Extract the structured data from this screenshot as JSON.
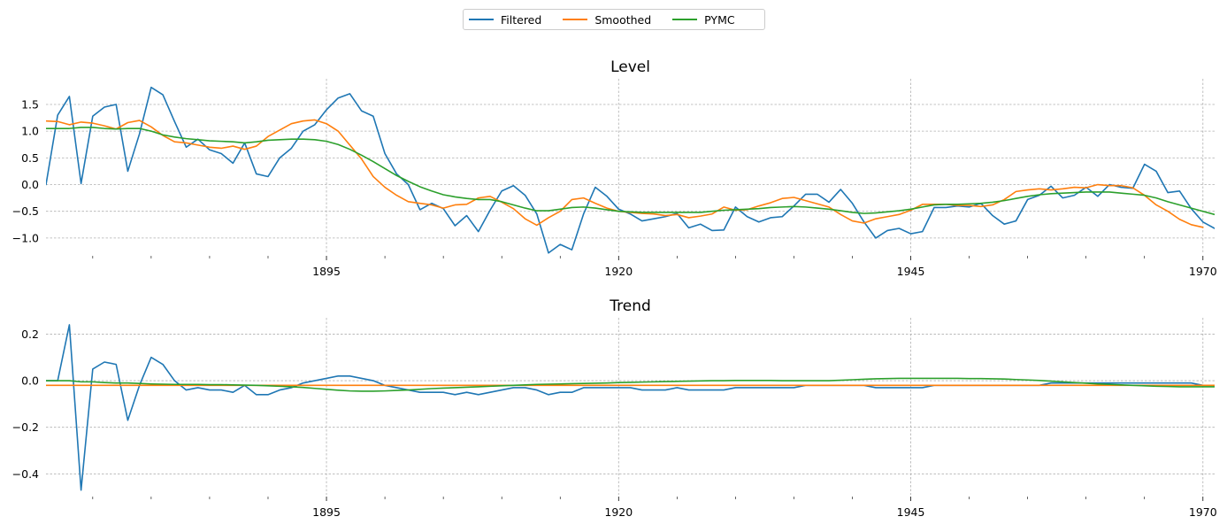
{
  "legend": {
    "items": [
      {
        "label": "Filtered",
        "color": "#1f77b4"
      },
      {
        "label": "Smoothed",
        "color": "#ff7f0e"
      },
      {
        "label": "PYMC",
        "color": "#2ca02c"
      }
    ],
    "placement": "top-center"
  },
  "chart_data": [
    {
      "type": "line",
      "title": "Level",
      "xlabel": "",
      "ylabel": "",
      "grid": true,
      "xlim": [
        1871,
        1971
      ],
      "ylim": [
        -1.3,
        1.98
      ],
      "xticks": [
        1895,
        1920,
        1945,
        1970
      ],
      "xticks_minor": [
        1875,
        1880,
        1885,
        1890,
        1900,
        1905,
        1910,
        1915,
        1925,
        1930,
        1935,
        1940,
        1950,
        1955,
        1960,
        1965
      ],
      "yticks": [
        -1.0,
        -0.5,
        0.0,
        0.5,
        1.0,
        1.5
      ],
      "ytick_labels": [
        "−1.0",
        "−0.5",
        "0.0",
        "0.5",
        "1.0",
        "1.5"
      ],
      "x_start": 1871,
      "series": [
        {
          "name": "Filtered",
          "color": "#1f77b4",
          "values": [
            0.0,
            1.3,
            1.65,
            0.02,
            1.28,
            1.45,
            1.5,
            0.25,
            0.95,
            1.82,
            1.68,
            1.18,
            0.7,
            0.85,
            0.65,
            0.58,
            0.4,
            0.78,
            0.2,
            0.15,
            0.5,
            0.68,
            1.0,
            1.12,
            1.4,
            1.62,
            1.7,
            1.38,
            1.28,
            0.58,
            0.2,
            0.0,
            -0.47,
            -0.35,
            -0.45,
            -0.77,
            -0.58,
            -0.88,
            -0.48,
            -0.12,
            -0.02,
            -0.2,
            -0.55,
            -1.28,
            -1.12,
            -1.22,
            -0.55,
            -0.05,
            -0.22,
            -0.46,
            -0.55,
            -0.68,
            -0.64,
            -0.6,
            -0.54,
            -0.81,
            -0.74,
            -0.86,
            -0.85,
            -0.42,
            -0.6,
            -0.7,
            -0.62,
            -0.6,
            -0.4,
            -0.18,
            -0.18,
            -0.33,
            -0.09,
            -0.35,
            -0.7,
            -1.0,
            -0.86,
            -0.82,
            -0.92,
            -0.88,
            -0.43,
            -0.43,
            -0.4,
            -0.42,
            -0.35,
            -0.58,
            -0.74,
            -0.68,
            -0.28,
            -0.2,
            -0.03,
            -0.25,
            -0.2,
            -0.05,
            -0.22,
            0.0,
            -0.05,
            -0.07,
            0.38,
            0.25,
            -0.15,
            -0.12,
            -0.45,
            -0.7,
            -0.82
          ]
        },
        {
          "name": "Smoothed",
          "color": "#ff7f0e",
          "values": [
            1.19,
            1.18,
            1.12,
            1.17,
            1.15,
            1.1,
            1.04,
            1.16,
            1.2,
            1.08,
            0.92,
            0.8,
            0.78,
            0.74,
            0.7,
            0.68,
            0.72,
            0.66,
            0.72,
            0.9,
            1.02,
            1.14,
            1.19,
            1.21,
            1.14,
            1.0,
            0.74,
            0.48,
            0.15,
            -0.05,
            -0.2,
            -0.32,
            -0.35,
            -0.38,
            -0.44,
            -0.38,
            -0.37,
            -0.25,
            -0.22,
            -0.33,
            -0.45,
            -0.64,
            -0.76,
            -0.62,
            -0.5,
            -0.28,
            -0.25,
            -0.35,
            -0.44,
            -0.5,
            -0.52,
            -0.54,
            -0.55,
            -0.58,
            -0.56,
            -0.62,
            -0.59,
            -0.55,
            -0.42,
            -0.48,
            -0.47,
            -0.4,
            -0.34,
            -0.26,
            -0.24,
            -0.3,
            -0.36,
            -0.42,
            -0.56,
            -0.68,
            -0.72,
            -0.64,
            -0.6,
            -0.56,
            -0.48,
            -0.37,
            -0.37,
            -0.37,
            -0.39,
            -0.39,
            -0.41,
            -0.38,
            -0.28,
            -0.13,
            -0.1,
            -0.08,
            -0.1,
            -0.08,
            -0.05,
            -0.06,
            0.0,
            -0.02,
            -0.02,
            -0.06,
            -0.2,
            -0.38,
            -0.5,
            -0.65,
            -0.75,
            -0.8
          ]
        },
        {
          "name": "PYMC",
          "color": "#2ca02c",
          "values": [
            1.05,
            1.05,
            1.05,
            1.07,
            1.07,
            1.05,
            1.04,
            1.05,
            1.05,
            1.0,
            0.93,
            0.89,
            0.86,
            0.84,
            0.82,
            0.81,
            0.8,
            0.78,
            0.8,
            0.83,
            0.84,
            0.85,
            0.85,
            0.84,
            0.81,
            0.75,
            0.66,
            0.55,
            0.43,
            0.3,
            0.17,
            0.06,
            -0.04,
            -0.12,
            -0.19,
            -0.23,
            -0.26,
            -0.28,
            -0.28,
            -0.32,
            -0.38,
            -0.44,
            -0.49,
            -0.49,
            -0.46,
            -0.43,
            -0.42,
            -0.44,
            -0.47,
            -0.5,
            -0.51,
            -0.52,
            -0.52,
            -0.52,
            -0.52,
            -0.52,
            -0.52,
            -0.5,
            -0.48,
            -0.47,
            -0.46,
            -0.45,
            -0.43,
            -0.42,
            -0.41,
            -0.42,
            -0.44,
            -0.46,
            -0.49,
            -0.52,
            -0.54,
            -0.53,
            -0.51,
            -0.49,
            -0.46,
            -0.42,
            -0.38,
            -0.37,
            -0.37,
            -0.36,
            -0.35,
            -0.33,
            -0.3,
            -0.26,
            -0.22,
            -0.19,
            -0.17,
            -0.16,
            -0.15,
            -0.14,
            -0.14,
            -0.14,
            -0.16,
            -0.18,
            -0.2,
            -0.25,
            -0.32,
            -0.38,
            -0.44,
            -0.5,
            -0.56
          ]
        }
      ]
    },
    {
      "type": "line",
      "title": "Trend",
      "xlabel": "",
      "ylabel": "",
      "grid": true,
      "xlim": [
        1871,
        1971
      ],
      "ylim": [
        -0.49,
        0.27
      ],
      "xticks": [
        1895,
        1920,
        1945,
        1970
      ],
      "xticks_minor": [
        1875,
        1880,
        1885,
        1890,
        1900,
        1905,
        1910,
        1915,
        1925,
        1930,
        1935,
        1940,
        1950,
        1955,
        1960,
        1965
      ],
      "yticks": [
        -0.4,
        -0.2,
        0.0,
        0.2
      ],
      "ytick_labels": [
        "−0.4",
        "−0.2",
        "0.0",
        "0.2"
      ],
      "x_start": 1871,
      "series": [
        {
          "name": "Filtered",
          "color": "#1f77b4",
          "values": [
            0.0,
            0.0,
            0.24,
            -0.47,
            0.05,
            0.08,
            0.07,
            -0.17,
            -0.02,
            0.1,
            0.07,
            0.0,
            -0.04,
            -0.03,
            -0.04,
            -0.04,
            -0.05,
            -0.02,
            -0.06,
            -0.06,
            -0.04,
            -0.03,
            -0.01,
            0.0,
            0.01,
            0.02,
            0.02,
            0.01,
            0.0,
            -0.02,
            -0.03,
            -0.04,
            -0.05,
            -0.05,
            -0.05,
            -0.06,
            -0.05,
            -0.06,
            -0.05,
            -0.04,
            -0.03,
            -0.03,
            -0.04,
            -0.06,
            -0.05,
            -0.05,
            -0.03,
            -0.03,
            -0.03,
            -0.03,
            -0.03,
            -0.04,
            -0.04,
            -0.04,
            -0.03,
            -0.04,
            -0.04,
            -0.04,
            -0.04,
            -0.03,
            -0.03,
            -0.03,
            -0.03,
            -0.03,
            -0.03,
            -0.02,
            -0.02,
            -0.02,
            -0.02,
            -0.02,
            -0.02,
            -0.03,
            -0.03,
            -0.03,
            -0.03,
            -0.03,
            -0.02,
            -0.02,
            -0.02,
            -0.02,
            -0.02,
            -0.02,
            -0.02,
            -0.02,
            -0.02,
            -0.02,
            -0.01,
            -0.01,
            -0.01,
            -0.01,
            -0.01,
            -0.01,
            -0.01,
            -0.01,
            -0.01,
            -0.01,
            -0.01,
            -0.01,
            -0.01,
            -0.02,
            -0.02
          ]
        },
        {
          "name": "Smoothed",
          "color": "#ff7f0e",
          "values": [
            -0.02,
            -0.02,
            -0.02,
            -0.02,
            -0.02,
            -0.02,
            -0.02,
            -0.02,
            -0.02,
            -0.02,
            -0.02,
            -0.02,
            -0.02,
            -0.02,
            -0.02,
            -0.02,
            -0.02,
            -0.02,
            -0.02,
            -0.02,
            -0.02,
            -0.02,
            -0.02,
            -0.02,
            -0.02,
            -0.02,
            -0.02,
            -0.02,
            -0.02,
            -0.02,
            -0.02,
            -0.02,
            -0.02,
            -0.02,
            -0.02,
            -0.02,
            -0.02,
            -0.02,
            -0.02,
            -0.02,
            -0.02,
            -0.02,
            -0.02,
            -0.02,
            -0.02,
            -0.02,
            -0.02,
            -0.02,
            -0.02,
            -0.02,
            -0.02,
            -0.02,
            -0.02,
            -0.02,
            -0.02,
            -0.02,
            -0.02,
            -0.02,
            -0.02,
            -0.02,
            -0.02,
            -0.02,
            -0.02,
            -0.02,
            -0.02,
            -0.02,
            -0.02,
            -0.02,
            -0.02,
            -0.02,
            -0.02,
            -0.02,
            -0.02,
            -0.02,
            -0.02,
            -0.02,
            -0.02,
            -0.02,
            -0.02,
            -0.02,
            -0.02,
            -0.02,
            -0.02,
            -0.02,
            -0.02,
            -0.02,
            -0.02,
            -0.02,
            -0.02,
            -0.02,
            -0.02,
            -0.02,
            -0.02,
            -0.02,
            -0.02,
            -0.02,
            -0.02,
            -0.02,
            -0.02,
            -0.02,
            -0.02
          ]
        },
        {
          "name": "PYMC",
          "color": "#2ca02c",
          "values": [
            0.0,
            0.0,
            0.0,
            -0.005,
            -0.005,
            -0.008,
            -0.01,
            -0.01,
            -0.012,
            -0.014,
            -0.015,
            -0.016,
            -0.016,
            -0.016,
            -0.017,
            -0.017,
            -0.018,
            -0.019,
            -0.02,
            -0.022,
            -0.024,
            -0.026,
            -0.029,
            -0.033,
            -0.037,
            -0.041,
            -0.044,
            -0.045,
            -0.045,
            -0.044,
            -0.042,
            -0.04,
            -0.037,
            -0.034,
            -0.032,
            -0.03,
            -0.028,
            -0.026,
            -0.024,
            -0.022,
            -0.02,
            -0.018,
            -0.016,
            -0.015,
            -0.014,
            -0.013,
            -0.012,
            -0.011,
            -0.01,
            -0.008,
            -0.007,
            -0.006,
            -0.005,
            -0.004,
            -0.003,
            -0.002,
            -0.001,
            0.0,
            0.0,
            0.001,
            0.001,
            0.001,
            0.001,
            0.0,
            0.0,
            0.0,
            0.0,
            0.0,
            0.002,
            0.004,
            0.006,
            0.008,
            0.009,
            0.01,
            0.01,
            0.01,
            0.01,
            0.01,
            0.01,
            0.009,
            0.009,
            0.008,
            0.007,
            0.005,
            0.003,
            0.001,
            -0.002,
            -0.005,
            -0.008,
            -0.011,
            -0.014,
            -0.016,
            -0.018,
            -0.02,
            -0.022,
            -0.024,
            -0.025,
            -0.026,
            -0.026,
            -0.026,
            -0.026
          ]
        }
      ]
    }
  ]
}
